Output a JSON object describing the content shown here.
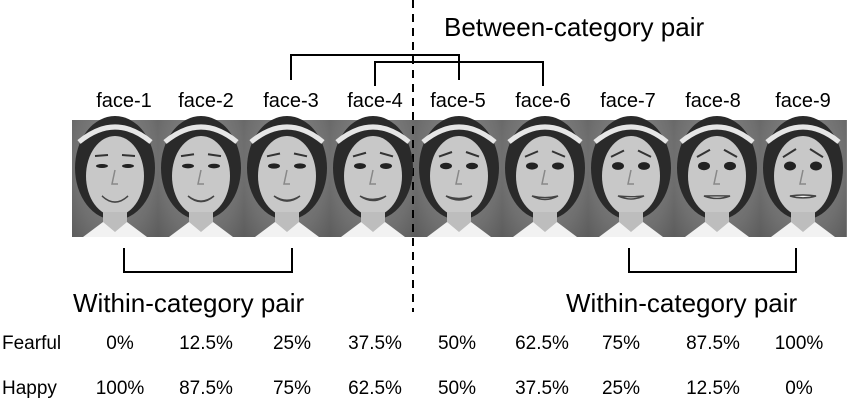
{
  "between_label": "Between-category pair",
  "within_label_left": "Within-category pair",
  "within_label_right": "Within-category pair",
  "faces": [
    {
      "label": "face-1",
      "fearful": "0%",
      "happy": "100%"
    },
    {
      "label": "face-2",
      "fearful": "12.5%",
      "happy": "87.5%"
    },
    {
      "label": "face-3",
      "fearful": "25%",
      "happy": "75%"
    },
    {
      "label": "face-4",
      "fearful": "37.5%",
      "happy": "62.5%"
    },
    {
      "label": "face-5",
      "fearful": "50%",
      "happy": "50%"
    },
    {
      "label": "face-6",
      "fearful": "62.5%",
      "happy": "37.5%"
    },
    {
      "label": "face-7",
      "fearful": "75%",
      "happy": "25%"
    },
    {
      "label": "face-8",
      "fearful": "87.5%",
      "happy": "12.5%"
    },
    {
      "label": "face-9",
      "fearful": "100%",
      "happy": "0%"
    }
  ],
  "row_labels": {
    "fearful": "Fearful",
    "happy": "Happy"
  }
}
